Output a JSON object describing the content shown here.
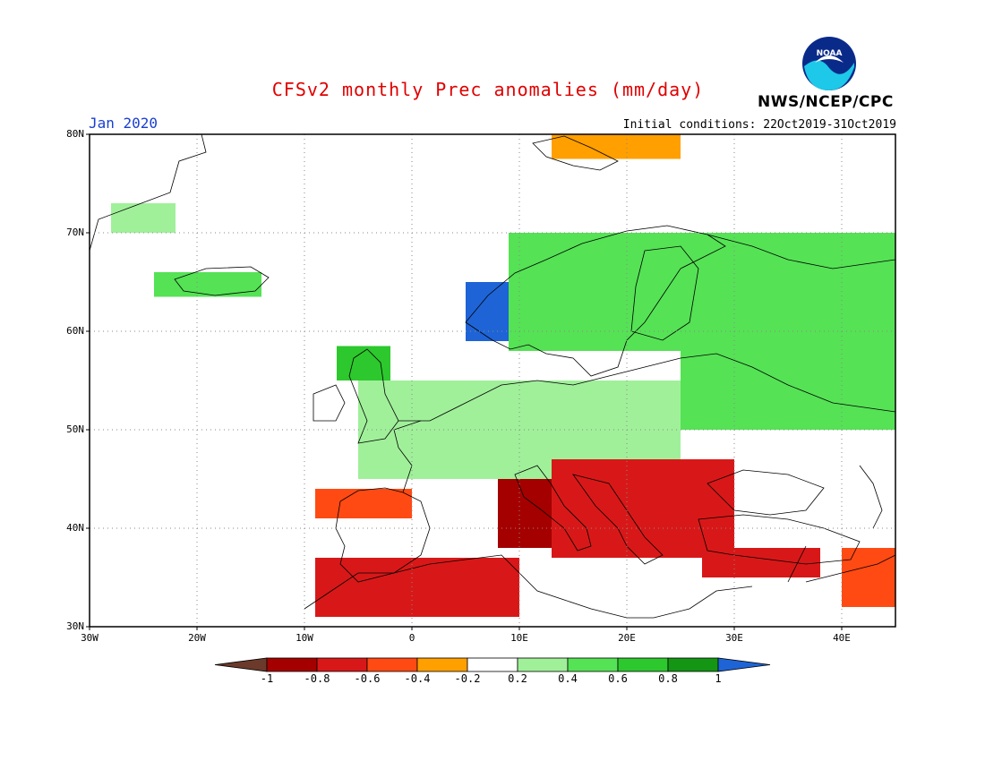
{
  "header": {
    "title": "CFSv2 monthly Prec anomalies (mm/day)",
    "month": "Jan 2020",
    "initial_conditions": "Initial conditions: 22Oct2019-31Oct2019",
    "agency": "NWS/NCEP/CPC",
    "logo_text": "NOAA"
  },
  "map": {
    "lat_labels": [
      "80N",
      "70N",
      "60N",
      "50N",
      "40N",
      "30N"
    ],
    "lon_labels": [
      "30W",
      "20W",
      "10W",
      "0",
      "10E",
      "20E",
      "30E",
      "40E"
    ],
    "lon_range": [
      -30,
      45
    ],
    "lat_range": [
      30,
      80
    ],
    "gridlines": "dotted"
  },
  "colorbar": {
    "ticks": [
      "-1",
      "-0.8",
      "-0.6",
      "-0.4",
      "-0.2",
      "0.2",
      "0.4",
      "0.6",
      "0.8",
      "1"
    ],
    "colors": [
      "#6b3a2a",
      "#a50000",
      "#d81818",
      "#ff4a14",
      "#ff9f00",
      "#ffffff",
      "#a0f09a",
      "#55e255",
      "#2dc82d",
      "#149614",
      "#1e64d6"
    ]
  },
  "anomaly_regions": [
    {
      "name": "greenland-east",
      "level": 0.3,
      "lon": [
        -28,
        -22
      ],
      "lat": [
        70,
        73
      ]
    },
    {
      "name": "iceland",
      "level": 0.4,
      "lon": [
        -24,
        -14
      ],
      "lat": [
        63.5,
        66
      ]
    },
    {
      "name": "scotland",
      "level": 0.6,
      "lon": [
        -7,
        -2
      ],
      "lat": [
        55,
        58.5
      ]
    },
    {
      "name": "norway-coast",
      "level": 1.0,
      "lon": [
        5,
        13
      ],
      "lat": [
        59,
        65
      ]
    },
    {
      "name": "scandinavia",
      "level": 0.4,
      "lon": [
        9,
        28
      ],
      "lat": [
        58,
        70
      ]
    },
    {
      "name": "russia-north",
      "level": 0.5,
      "lon": [
        25,
        45
      ],
      "lat": [
        50,
        70
      ]
    },
    {
      "name": "central-europe",
      "level": 0.3,
      "lon": [
        -5,
        25
      ],
      "lat": [
        45,
        55
      ]
    },
    {
      "name": "iberia-north",
      "level": -0.4,
      "lon": [
        -9,
        0
      ],
      "lat": [
        41,
        44
      ]
    },
    {
      "name": "italy",
      "level": -0.8,
      "lon": [
        8,
        18
      ],
      "lat": [
        38,
        45
      ]
    },
    {
      "name": "balkans",
      "level": -0.7,
      "lon": [
        13,
        30
      ],
      "lat": [
        37,
        47
      ]
    },
    {
      "name": "turkey-south",
      "level": -0.6,
      "lon": [
        27,
        38
      ],
      "lat": [
        35,
        38
      ]
    },
    {
      "name": "morocco-algeria",
      "level": -0.7,
      "lon": [
        -9,
        10
      ],
      "lat": [
        31,
        37
      ]
    },
    {
      "name": "middle-east",
      "level": -0.4,
      "lon": [
        40,
        45
      ],
      "lat": [
        32,
        38
      ]
    },
    {
      "name": "svalbard",
      "level": -0.3,
      "lon": [
        13,
        25
      ],
      "lat": [
        77.5,
        80
      ]
    }
  ]
}
